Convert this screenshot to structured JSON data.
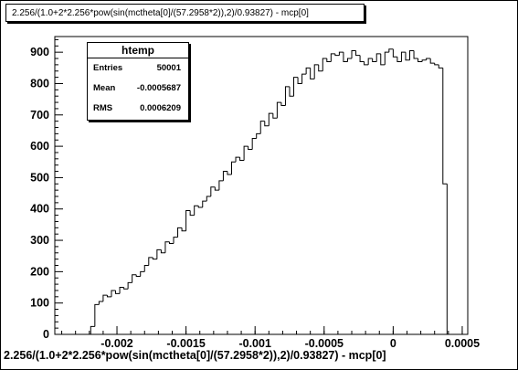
{
  "chart_data": {
    "type": "histogram",
    "title": "2.256/(1.0+2*2.256*pow(sin(mctheta[0]/(57.2958*2)),2)/0.93827) - mcp[0]",
    "xlabel": "2.256/(1.0+2*2.256*pow(sin(mctheta[0]/(57.2958*2)),2)/0.93827) - mcp[0]",
    "ylabel": "",
    "xlim": [
      -0.00245,
      0.00054
    ],
    "ylim": [
      0,
      950
    ],
    "x_ticks": [
      -0.002,
      -0.0015,
      -0.001,
      -0.0005,
      0,
      0.0005
    ],
    "x_tick_labels": [
      "-0.002",
      "-0.0015",
      "-0.001",
      "-0.0005",
      "0",
      "0.0005"
    ],
    "y_ticks": [
      0,
      100,
      200,
      300,
      400,
      500,
      600,
      700,
      800,
      900
    ],
    "y_tick_labels": [
      "0",
      "100",
      "200",
      "300",
      "400",
      "500",
      "600",
      "700",
      "800",
      "900"
    ],
    "grid": false,
    "bin_width": 3e-05,
    "bin_centers": [
      -0.002175,
      -0.002145,
      -0.002115,
      -0.002085,
      -0.002055,
      -0.002025,
      -0.001995,
      -0.001965,
      -0.001935,
      -0.001905,
      -0.001875,
      -0.001845,
      -0.001815,
      -0.001785,
      -0.001755,
      -0.001725,
      -0.001695,
      -0.001665,
      -0.001635,
      -0.001605,
      -0.001575,
      -0.001545,
      -0.001515,
      -0.001485,
      -0.001455,
      -0.001425,
      -0.001395,
      -0.001365,
      -0.001335,
      -0.001305,
      -0.001275,
      -0.001245,
      -0.001215,
      -0.001185,
      -0.001155,
      -0.001125,
      -0.001095,
      -0.001065,
      -0.001035,
      -0.001005,
      -0.000975,
      -0.000945,
      -0.000915,
      -0.000885,
      -0.000855,
      -0.000825,
      -0.000795,
      -0.000765,
      -0.000735,
      -0.000705,
      -0.000675,
      -0.000645,
      -0.000615,
      -0.000585,
      -0.000555,
      -0.000525,
      -0.000495,
      -0.000465,
      -0.000435,
      -0.000405,
      -0.000375,
      -0.000345,
      -0.000315,
      -0.000285,
      -0.000255,
      -0.000225,
      -0.000195,
      -0.000165,
      -0.000135,
      -0.000105,
      -7.5e-05,
      -4.5e-05,
      -1.5e-05,
      1.5e-05,
      4.5e-05,
      7.5e-05,
      0.000105,
      0.000135,
      0.000165,
      0.000195,
      0.000225,
      0.000255,
      0.000285,
      0.000315,
      0.000345,
      0.000375,
      0.000405
    ],
    "counts": [
      25,
      95,
      105,
      125,
      120,
      140,
      130,
      150,
      145,
      165,
      190,
      185,
      200,
      220,
      245,
      240,
      270,
      260,
      295,
      290,
      310,
      340,
      330,
      395,
      380,
      410,
      405,
      425,
      440,
      470,
      460,
      490,
      520,
      510,
      550,
      565,
      555,
      600,
      590,
      625,
      640,
      680,
      665,
      705,
      690,
      740,
      730,
      790,
      760,
      820,
      800,
      830,
      850,
      815,
      860,
      840,
      880,
      870,
      895,
      890,
      900,
      870,
      880,
      905,
      890,
      870,
      860,
      880,
      870,
      895,
      860,
      900,
      910,
      885,
      870,
      900,
      875,
      905,
      880,
      870,
      875,
      880,
      865,
      860,
      850,
      480,
      0
    ]
  },
  "stats_box": {
    "title": "htemp",
    "entries_label": "Entries",
    "entries_value": "50001",
    "mean_label": "Mean",
    "mean_value": "-0.0005687",
    "rms_label": "RMS",
    "rms_value": "0.0006209"
  }
}
